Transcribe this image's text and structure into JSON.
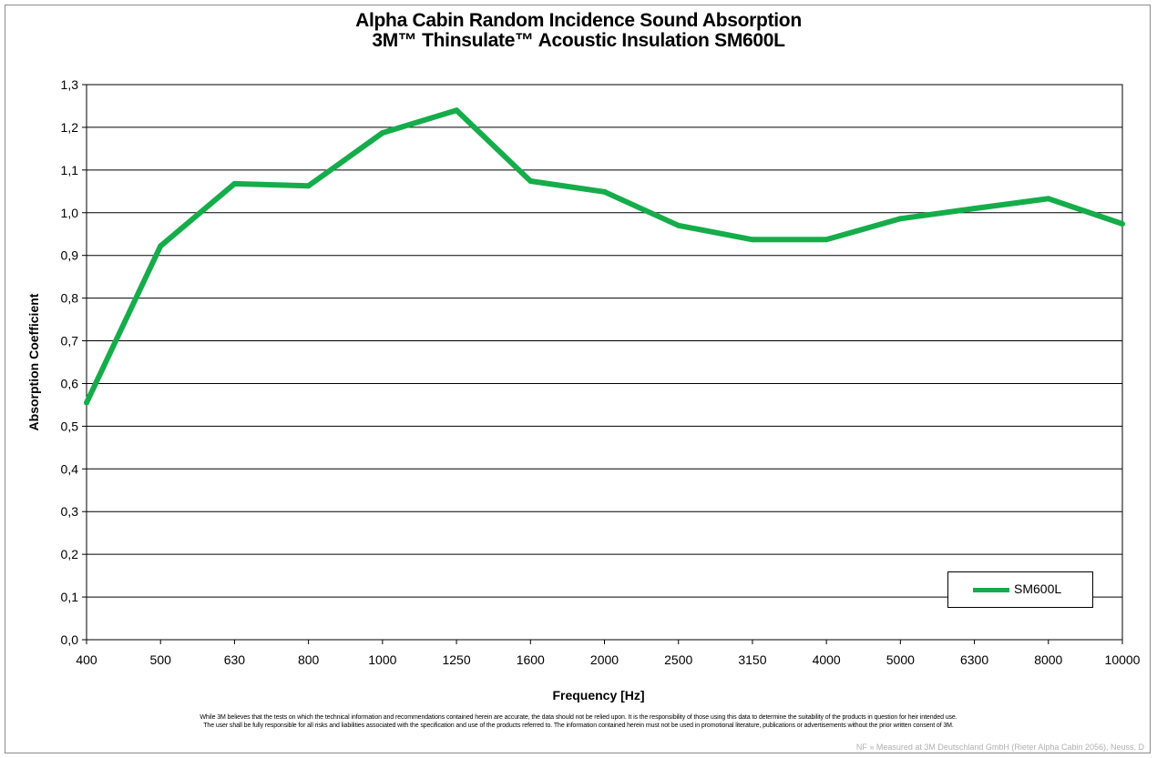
{
  "chart_data": {
    "type": "line",
    "title": "Alpha Cabin Random Incidence Sound Absorption",
    "subtitle": "3M™ Thinsulate™ Acoustic Insulation SM600L",
    "xlabel": "Frequency [Hz]",
    "ylabel": "Absorption Coefficient",
    "categories": [
      "400",
      "500",
      "630",
      "800",
      "1000",
      "1250",
      "1600",
      "2000",
      "2500",
      "3150",
      "4000",
      "5000",
      "6300",
      "8000",
      "10000"
    ],
    "series": [
      {
        "name": "SM600L",
        "color": "#14ad4a",
        "values": [
          0.555,
          0.922,
          1.068,
          1.063,
          1.187,
          1.24,
          1.074,
          1.049,
          0.97,
          0.937,
          0.937,
          0.986,
          1.01,
          1.033,
          0.974
        ]
      }
    ],
    "ylim": [
      0,
      1.3
    ],
    "yticks": [
      "0,0",
      "0,1",
      "0,2",
      "0,3",
      "0,4",
      "0,5",
      "0,6",
      "0,7",
      "0,8",
      "0,9",
      "1,0",
      "1,1",
      "1,2",
      "1,3"
    ],
    "grid": true,
    "legend_position": "bottom-right"
  },
  "disclaimer": {
    "line1": "While 3M believes that the tests on which the technical information and recommendations contained herein are accurate, the data should not be relied upon. It is the responsibility of those using this data to determine the suitability of the products in question for heir intended use.",
    "line2": "The user shall be fully responsible for all risks and liabilities associated with the specification and use of the products referred to. The information contained herein must not be used in promotional literature, publications or advertisements without the prior written consent of 3M."
  },
  "footnote": "NF » Measured at 3M Deutschland GmbH (Rieter Alpha Cabin 2056), Neuss, D"
}
